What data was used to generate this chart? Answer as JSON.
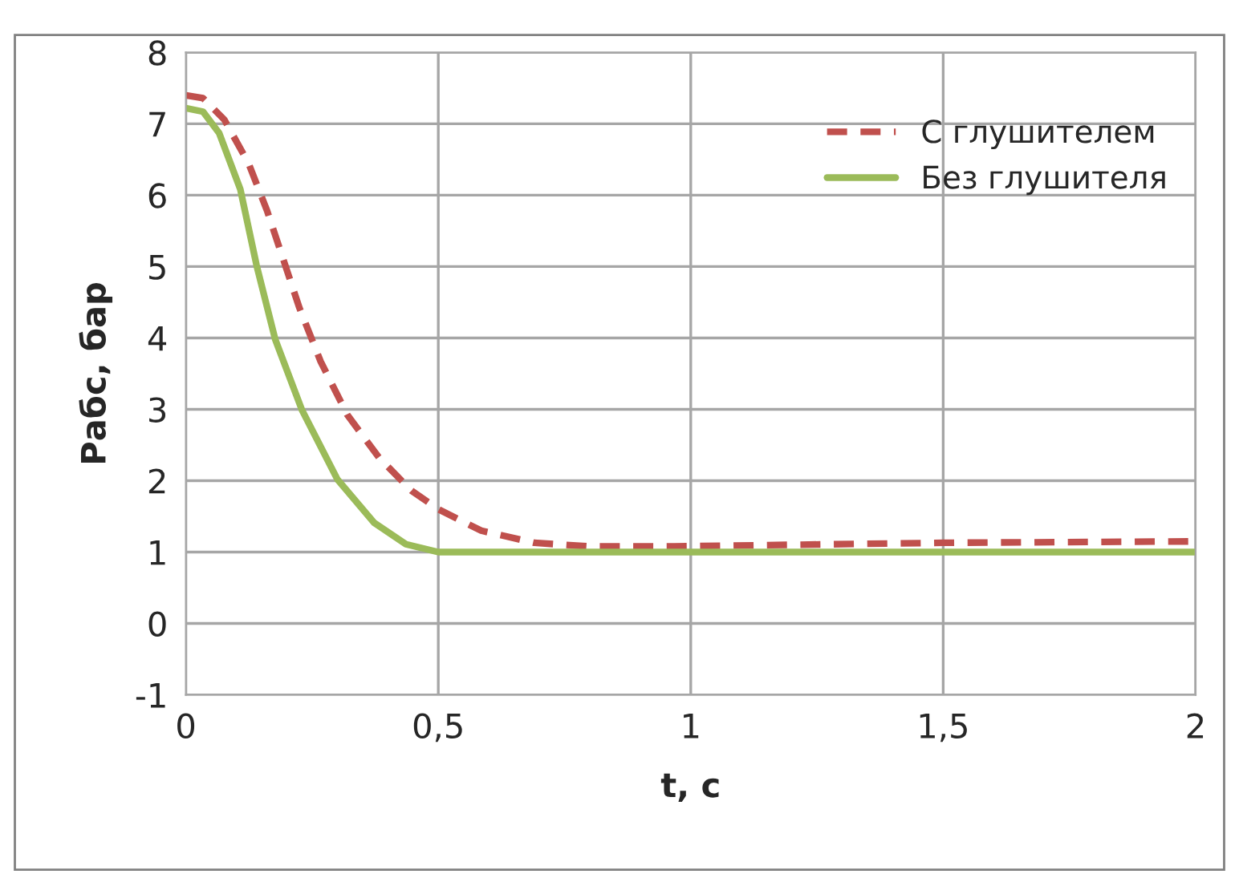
{
  "chart_data": {
    "type": "line",
    "xlabel": "t, c",
    "ylabel": "Рабс, бар",
    "xlim": [
      0,
      2
    ],
    "ylim": [
      -1,
      8
    ],
    "xticks": [
      0,
      {
        "value": 0.5,
        "label": "0,5"
      },
      1,
      {
        "value": 1.5,
        "label": "1,5"
      },
      2
    ],
    "yticks": [
      -1,
      0,
      1,
      2,
      3,
      4,
      5,
      6,
      7,
      8
    ],
    "grid": true,
    "legend": "top right",
    "series": [
      {
        "name": "С глушителем",
        "color": "#c0504d",
        "line_style": "dashed",
        "x": [
          0,
          0.034,
          0.076,
          0.124,
          0.161,
          0.193,
          0.225,
          0.267,
          0.32,
          0.383,
          0.447,
          0.5,
          0.585,
          0.69,
          0.797,
          0.967,
          1.5,
          2
        ],
        "values": [
          7.4,
          7.36,
          7.06,
          6.45,
          5.78,
          5.1,
          4.42,
          3.67,
          2.92,
          2.32,
          1.86,
          1.6,
          1.3,
          1.13,
          1.08,
          1.08,
          1.13,
          1.15
        ]
      },
      {
        "name": "Без глушителя",
        "color": "#9bbb59",
        "line_style": "solid",
        "x": [
          0,
          0.034,
          0.066,
          0.108,
          0.14,
          0.177,
          0.23,
          0.3,
          0.373,
          0.436,
          0.5,
          1,
          1.5,
          2
        ],
        "values": [
          7.22,
          7.17,
          6.87,
          6.08,
          5.02,
          3.98,
          2.99,
          2.02,
          1.41,
          1.11,
          1.0,
          1.0,
          1.0,
          1.0
        ]
      }
    ]
  }
}
